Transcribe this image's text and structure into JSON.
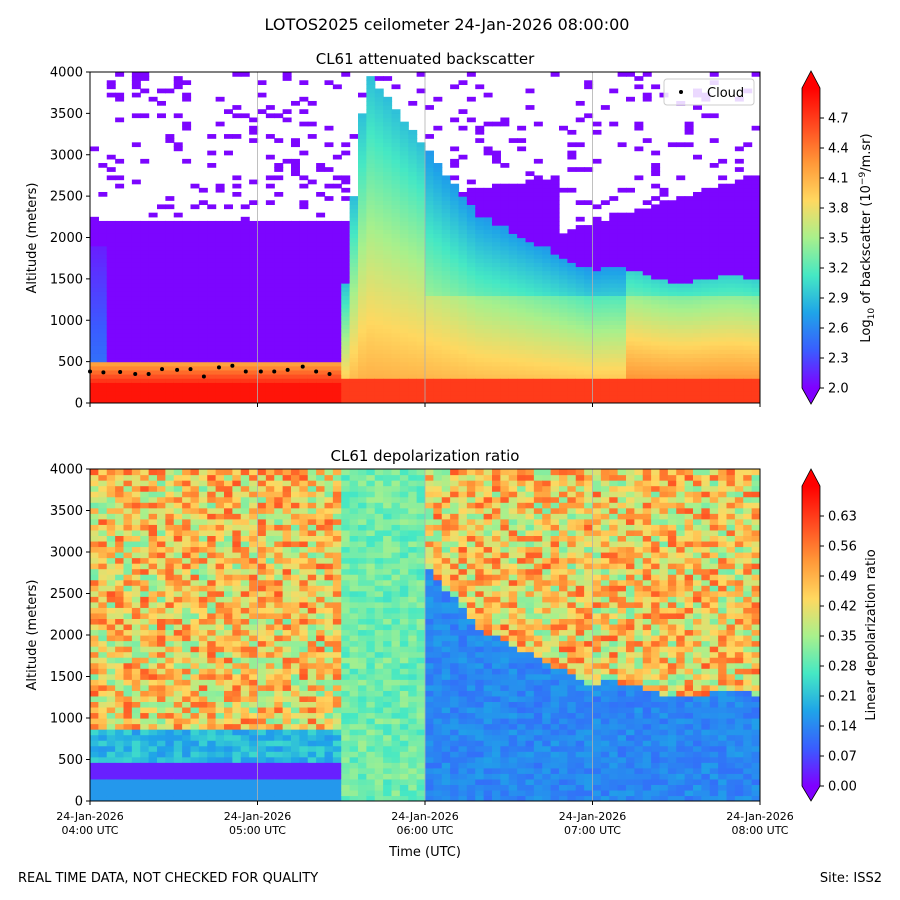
{
  "figure": {
    "suptitle": "LOTOS2025 ceilometer 24-Jan-2026 08:00:00",
    "footer_left": "REAL TIME DATA, NOT CHECKED FOR QUALITY",
    "footer_right": "Site: ISS2"
  },
  "colors": {
    "cloud_marker": "#000000",
    "grid": "#b0b0b0",
    "rainbow_stops": [
      "#8000ff",
      "#3a5cff",
      "#1fa4e8",
      "#45e8c4",
      "#a8f08c",
      "#ffd860",
      "#ff9838",
      "#ff4a20",
      "#ff0000"
    ]
  },
  "chart_data": [
    {
      "type": "heatmap",
      "title": "CL61 attenuated backscatter",
      "xlabel": "",
      "ylabel": "Altitude (meters)",
      "xlim": [
        4.0,
        8.0
      ],
      "ylim": [
        0,
        4000
      ],
      "x_ticks": [
        4,
        5,
        6,
        7,
        8
      ],
      "y_ticks": [
        0,
        500,
        1000,
        1500,
        2000,
        2500,
        3000,
        3500,
        4000
      ],
      "y_tick_labels": [
        "0",
        "500",
        "1000",
        "1500",
        "2000",
        "2500",
        "3000",
        "3500",
        "4000"
      ],
      "x_grid": true,
      "legend": {
        "location": "top-right",
        "entries": [
          "Cloud"
        ]
      },
      "colorbar": {
        "label_prefix": "Log",
        "label_sub": "10",
        "label_mid": " of backscatter (10",
        "label_sup": "−9",
        "label_suffix": "/m.sr)",
        "range": [
          2.0,
          5.0
        ],
        "ticks": [
          2.0,
          2.3,
          2.6,
          2.9,
          3.2,
          3.5,
          3.8,
          4.1,
          4.4,
          4.7
        ],
        "tick_labels": [
          "2.0",
          "2.3",
          "2.6",
          "2.9",
          "3.2",
          "3.5",
          "3.8",
          "4.1",
          "4.4",
          "4.7"
        ],
        "extend": "both"
      },
      "field_summary": {
        "aerosol_layer_top_m": 520,
        "noise_region_top_m": 2200,
        "plume_start_time_utc": 5.5,
        "dense_layer_value": 4.9
      },
      "cloud_base": {
        "name": "Cloud",
        "times_utc": [
          4.0,
          4.08,
          4.18,
          4.27,
          4.35,
          4.43,
          4.52,
          4.6,
          4.68,
          4.77,
          4.85,
          4.93,
          5.02,
          5.1,
          5.18,
          5.27,
          5.35,
          5.43
        ],
        "altitudes_m": [
          380,
          370,
          375,
          350,
          350,
          410,
          400,
          410,
          320,
          430,
          450,
          380,
          380,
          380,
          400,
          440,
          380,
          350
        ]
      }
    },
    {
      "type": "heatmap",
      "title": "CL61 depolarization ratio",
      "xlabel": "Time (UTC)",
      "ylabel": "Altitude (meters)",
      "xlim": [
        4.0,
        8.0
      ],
      "ylim": [
        0,
        4000
      ],
      "x_ticks": [
        4,
        5,
        6,
        7,
        8
      ],
      "x_tick_labels": [
        [
          "24-Jan-2026",
          "04:00 UTC"
        ],
        [
          "24-Jan-2026",
          "05:00 UTC"
        ],
        [
          "24-Jan-2026",
          "06:00 UTC"
        ],
        [
          "24-Jan-2026",
          "07:00 UTC"
        ],
        [
          "24-Jan-2026",
          "08:00 UTC"
        ]
      ],
      "y_ticks": [
        0,
        500,
        1000,
        1500,
        2000,
        2500,
        3000,
        3500,
        4000
      ],
      "y_tick_labels": [
        "0",
        "500",
        "1000",
        "1500",
        "2000",
        "2500",
        "3000",
        "3500",
        "4000"
      ],
      "x_grid": true,
      "colorbar": {
        "label": "Linear depolarization ratio",
        "range": [
          0.0,
          0.7
        ],
        "ticks": [
          0.0,
          0.07,
          0.14,
          0.21,
          0.28,
          0.35,
          0.42,
          0.49,
          0.56,
          0.63
        ],
        "tick_labels": [
          "0.00",
          "0.07",
          "0.14",
          "0.21",
          "0.28",
          "0.35",
          "0.42",
          "0.49",
          "0.56",
          "0.63"
        ],
        "extend": "both"
      },
      "field_summary": {
        "low_layer_value": 0.03,
        "boundary_layer_value": 0.14,
        "noise_mean_value": 0.45
      }
    }
  ]
}
